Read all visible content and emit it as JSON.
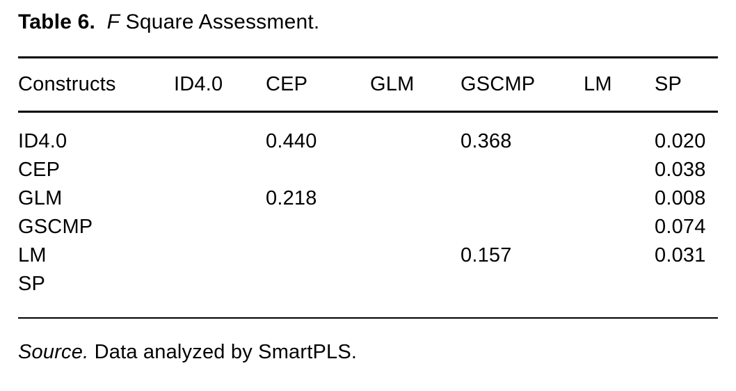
{
  "title": {
    "bold": "Table 6.",
    "italic": "F",
    "regular": "Square Assessment."
  },
  "table": {
    "columns": [
      "Constructs",
      "ID4.0",
      "CEP",
      "GLM",
      "GSCMP",
      "LM",
      "SP"
    ],
    "rows": [
      {
        "label": "ID4.0",
        "cells": [
          "",
          "0.440",
          "",
          "0.368",
          "",
          "0.020"
        ]
      },
      {
        "label": "CEP",
        "cells": [
          "",
          "",
          "",
          "",
          "",
          "0.038"
        ]
      },
      {
        "label": "GLM",
        "cells": [
          "",
          "0.218",
          "",
          "",
          "",
          "0.008"
        ]
      },
      {
        "label": "GSCMP",
        "cells": [
          "",
          "",
          "",
          "",
          "",
          "0.074"
        ]
      },
      {
        "label": "LM",
        "cells": [
          "",
          "",
          "",
          "0.157",
          "",
          "0.031"
        ]
      },
      {
        "label": "SP",
        "cells": [
          "",
          "",
          "",
          "",
          "",
          ""
        ]
      }
    ]
  },
  "source": {
    "italic": "Source.",
    "text": "Data analyzed by SmartPLS."
  },
  "colors": {
    "text": "#000000",
    "background": "#ffffff",
    "rule": "#000000"
  }
}
